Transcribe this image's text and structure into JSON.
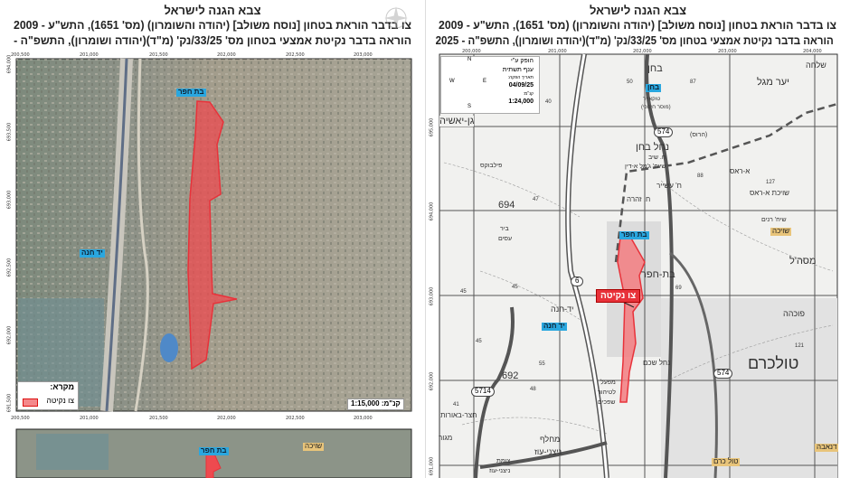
{
  "left_map": {
    "org": "צבא הגנה לישראל",
    "title_line1": "צו בדבר הוראת בטחון [נוסח משולב] (יהודה והשומרון) (מס' 1651), התש\"ע - 2009",
    "title_line2": "הוראה בדבר נקיטת אמצעי בטחון מס' 33/25/נק' (מ\"ד)(יהודה ושומרון), התשפ\"ה -",
    "x_ticks": [
      "200,500",
      "201,000",
      "201,500",
      "202,000",
      "202,500",
      "203,000"
    ],
    "y_ticks": [
      "694,000",
      "693,500",
      "693,000",
      "692,500",
      "692,000",
      "691,500"
    ],
    "places": [
      "בת חפר",
      "יד חנה"
    ],
    "legend_title": "מקרא:",
    "legend_item": "צו נקיטה",
    "scale": "קנ\"מ: 1:15,000",
    "lower_map_places": [
      "בת חפר",
      "שויכה"
    ],
    "order_color": "#e8323a",
    "icons": [
      "compass-rose-icon"
    ]
  },
  "right_map": {
    "org": "צבא הגנה לישראל",
    "title_line1": "צו בדבר הוראת בטחון [נוסח משולב] (יהודה והשומרון) (מס' 1651), התש\"ע - 2009",
    "title_line2": "הוראה בדבר נקיטת אמצעי בטחון מס' 33/25/נק' (מ\"ד)(יהודה ושומרון), התשפ\"ה - 2025",
    "x_ticks": [
      "200,000",
      "201,000",
      "202,000",
      "203,000",
      "204,000"
    ],
    "y_ticks": [
      "695,000",
      "694,000",
      "693,000",
      "692,000",
      "691,000"
    ],
    "info_box": {
      "produced_by": "הופק ע\"י",
      "unit": "ענף תשתית",
      "date_label": "תאריך הפקה:",
      "date": "04/09/25",
      "scale_label": "קנ\"מ:",
      "scale": "1:24,000",
      "compass": [
        "N",
        "S",
        "E",
        "W"
      ]
    },
    "order_label": "צו נקיטה",
    "blue_labels": [
      "בחן",
      "בת חפר",
      "יד חנה"
    ],
    "gold_labels": [
      "שויכה",
      "טול כרם",
      "דנאבה"
    ],
    "places": [
      "בחן",
      "טוקאייר",
      "(מוסר חינוכי)",
      "יער מגל",
      "שלחה",
      "נחל בחן",
      "ח. שיב",
      "שייח' ג'מל א-דין",
      "ח' עשייר",
      "ח. זהרה",
      "א-ראס",
      "שויכת א-ראס",
      "שיח' רנים",
      "מסה'ל",
      "פוכהה",
      "בת-חפר",
      "יד-חנה",
      "גן-יאשיה",
      "פילבוקס",
      "ביר",
      "עסים",
      "טולכרם",
      "נחל שכם",
      "מפעל",
      "לטיהור",
      "שפכים",
      "חצר-באורותי",
      "מגור",
      "מחלף",
      "ניצני-עוז",
      "צומת",
      "ניצני-עוז",
      "(הרוס)"
    ],
    "road_numbers": [
      "574",
      "574",
      "6",
      "5714",
      "694",
      "692"
    ],
    "elevations": [
      "45",
      "47",
      "45",
      "45",
      "55",
      "48",
      "41",
      "88",
      "127",
      "121",
      "87",
      "50",
      "40",
      "69"
    ]
  }
}
